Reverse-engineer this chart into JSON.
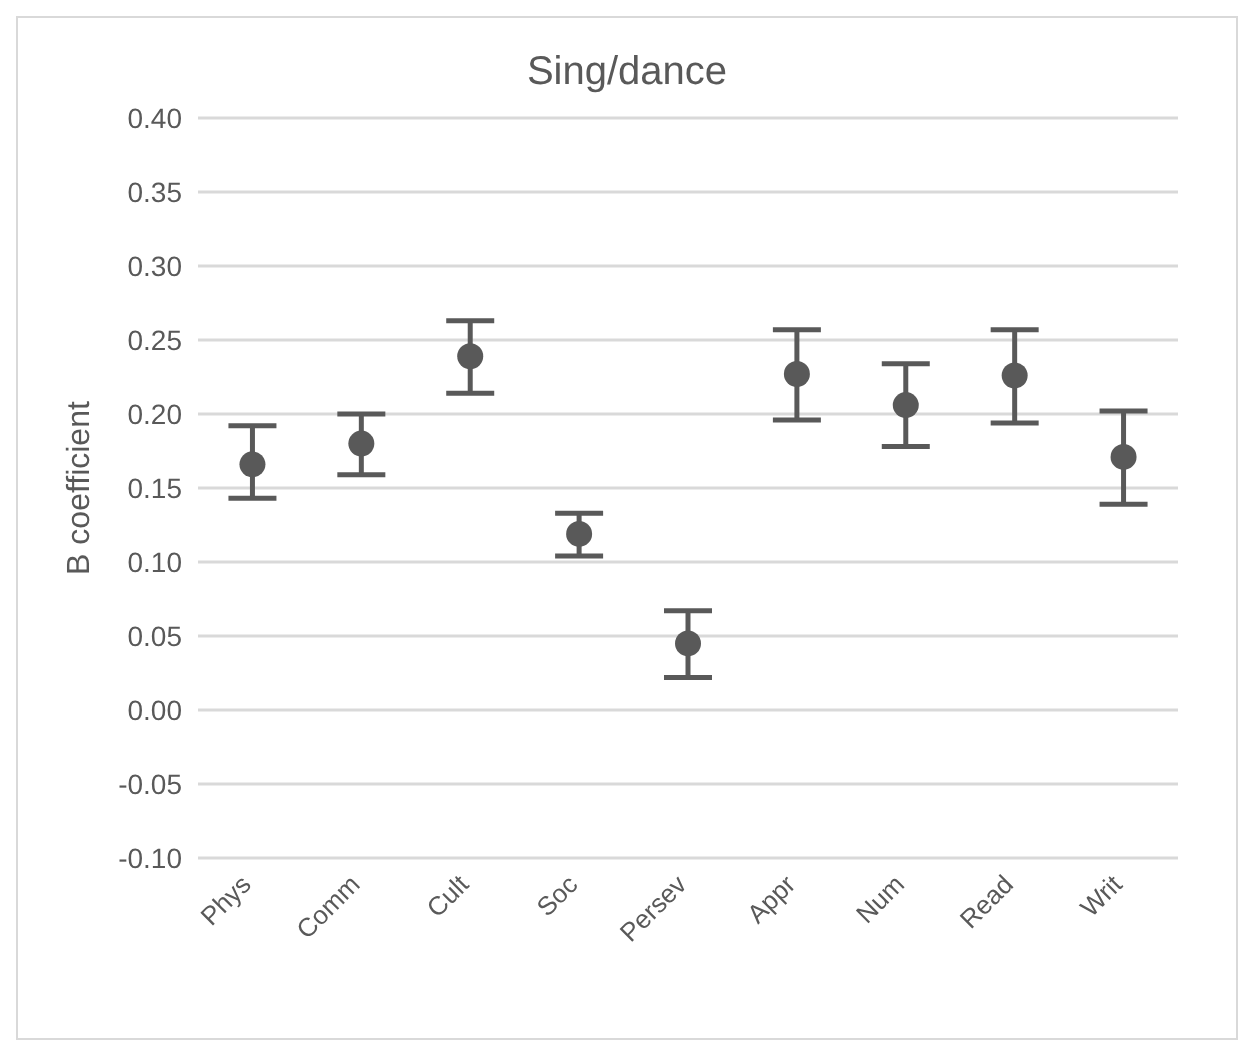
{
  "chart_data": {
    "type": "scatter",
    "title": "Sing/dance",
    "ylabel": "B coefficient",
    "categories": [
      "Phys",
      "Comm",
      "Cult",
      "Soc",
      "Persev",
      "Appr",
      "Num",
      "Read",
      "Writ"
    ],
    "values": [
      0.166,
      0.18,
      0.239,
      0.119,
      0.045,
      0.227,
      0.206,
      0.226,
      0.171
    ],
    "errors": [
      [
        0.143,
        0.192
      ],
      [
        0.159,
        0.2
      ],
      [
        0.214,
        0.263
      ],
      [
        0.104,
        0.133
      ],
      [
        0.022,
        0.067
      ],
      [
        0.196,
        0.257
      ],
      [
        0.178,
        0.234
      ],
      [
        0.194,
        0.257
      ],
      [
        0.139,
        0.202
      ]
    ],
    "color": "#595959",
    "marker": "circle",
    "ylim": [
      -0.1,
      0.4
    ],
    "yticks": [
      {
        "value": -0.1,
        "label": "-0.10"
      },
      {
        "value": -0.05,
        "label": "-0.05"
      },
      {
        "value": 0,
        "label": "0.00"
      },
      {
        "value": 0.05,
        "label": "0.05"
      },
      {
        "value": 0.1,
        "label": "0.10"
      },
      {
        "value": 0.15,
        "label": "0.15"
      },
      {
        "value": 0.2,
        "label": "0.20"
      },
      {
        "value": 0.25,
        "label": "0.25"
      },
      {
        "value": 0.3,
        "label": "0.30"
      },
      {
        "value": 0.35,
        "label": "0.35"
      },
      {
        "value": 0.4,
        "label": "0.40"
      }
    ],
    "grid": "y"
  }
}
